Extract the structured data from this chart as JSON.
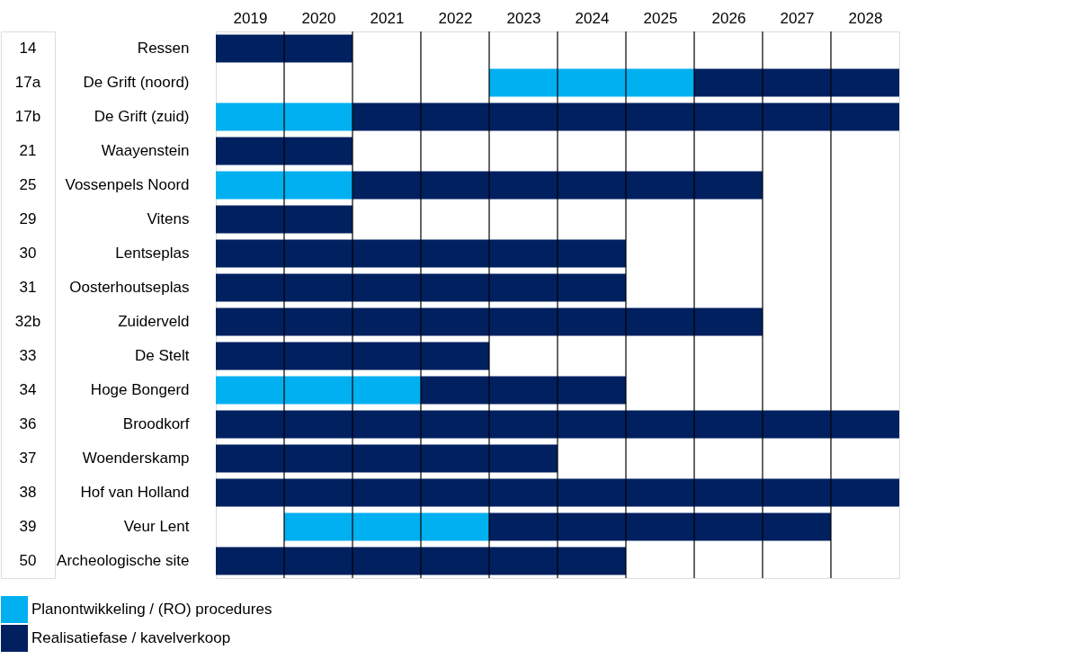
{
  "chart_data": {
    "type": "bar",
    "orientation": "horizontal",
    "categories": [
      "Ressen",
      "De Grift (noord)",
      "De Grift (zuid)",
      "Waayenstein",
      "Vossenpels Noord",
      "Vitens",
      "Lentseplas",
      "Oosterhoutseplas",
      "Zuiderveld",
      "De Stelt",
      "Hoge Bongerd",
      "Broodkorf",
      "Woenderskamp",
      "Hof van Holland",
      "Veur Lent",
      "Archeologische site"
    ],
    "series": [
      {
        "name": "Planontwikkeling / (RO) procedures",
        "color": "#00b0f0",
        "base": [
          null,
          2023,
          2019,
          null,
          2019,
          null,
          null,
          null,
          null,
          null,
          2019,
          null,
          null,
          null,
          2020,
          null
        ],
        "values": [
          null,
          3,
          2,
          null,
          2,
          null,
          null,
          null,
          null,
          null,
          3,
          null,
          null,
          null,
          3,
          null
        ]
      },
      {
        "name": "Realisatiefase / kavelverkoop",
        "color": "#002060",
        "base": [
          2019,
          2026,
          2021,
          2019,
          2021,
          2019,
          2019,
          2019,
          2019,
          2019,
          2022,
          2019,
          2019,
          2019,
          2023,
          2019
        ],
        "values": [
          2,
          3,
          8,
          2,
          6,
          2,
          6,
          6,
          8,
          4,
          3,
          10,
          5,
          10,
          5,
          6
        ]
      }
    ],
    "xlim": [
      2019,
      2029
    ],
    "xticks": [
      {
        "value": 2019.5,
        "label": "2019"
      },
      {
        "value": 2020.5,
        "label": "2020"
      },
      {
        "value": 2021.5,
        "label": "2021"
      },
      {
        "value": 2022.5,
        "label": "2022"
      },
      {
        "value": 2023.5,
        "label": "2023"
      },
      {
        "value": 2024.5,
        "label": "2024"
      },
      {
        "value": 2025.5,
        "label": "2025"
      },
      {
        "value": 2026.5,
        "label": "2026"
      },
      {
        "value": 2027.5,
        "label": "2027"
      },
      {
        "value": 2028.5,
        "label": "2028"
      },
      {
        "value": 2020,
        "label": null
      },
      {
        "value": 2021,
        "label": null
      },
      {
        "value": 2022,
        "label": null
      },
      {
        "value": 2023,
        "label": null
      },
      {
        "value": 2024,
        "label": null
      },
      {
        "value": 2025,
        "label": null
      },
      {
        "value": 2026,
        "label": null
      },
      {
        "value": 2027,
        "label": null
      },
      {
        "value": 2028,
        "label": null
      }
    ],
    "grid": "x",
    "legend": "bottom left",
    "annotations": [
      "14",
      "17a",
      "17b",
      "21",
      "25",
      "29",
      "30",
      "31",
      "32b",
      "33",
      "34",
      "36",
      "37",
      "38",
      "39",
      "50"
    ]
  }
}
